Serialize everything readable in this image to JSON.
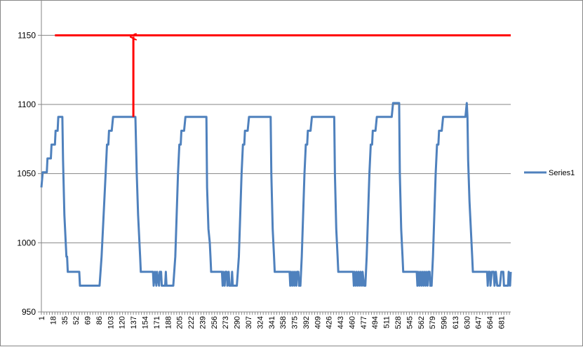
{
  "chart_data": {
    "type": "line",
    "ylim": [
      950,
      1175
    ],
    "xlim": [
      1,
      695
    ],
    "y_ticks": [
      950,
      1000,
      1050,
      1100,
      1150
    ],
    "x_ticks": [
      1,
      18,
      35,
      52,
      69,
      86,
      103,
      120,
      137,
      154,
      171,
      188,
      205,
      222,
      239,
      256,
      273,
      290,
      307,
      324,
      341,
      358,
      375,
      392,
      409,
      426,
      443,
      460,
      477,
      494,
      511,
      528,
      545,
      562,
      579,
      596,
      613,
      630,
      647,
      664,
      681
    ],
    "grid": "horizontal",
    "legend_position": "right",
    "series": [
      {
        "name": "Series1",
        "color": "#4F81BD",
        "points": [
          [
            1,
            1040
          ],
          [
            3,
            1051
          ],
          [
            9,
            1051
          ],
          [
            10,
            1061
          ],
          [
            15,
            1061
          ],
          [
            16,
            1071
          ],
          [
            21,
            1071
          ],
          [
            22,
            1081
          ],
          [
            25,
            1081
          ],
          [
            26,
            1091
          ],
          [
            32,
            1091
          ],
          [
            33,
            1060
          ],
          [
            35,
            1020
          ],
          [
            37,
            1000
          ],
          [
            38,
            990
          ],
          [
            39,
            990
          ],
          [
            40,
            979
          ],
          [
            57,
            979
          ],
          [
            58,
            969
          ],
          [
            87,
            969
          ],
          [
            90,
            990
          ],
          [
            93,
            1020
          ],
          [
            96,
            1050
          ],
          [
            98,
            1071
          ],
          [
            100,
            1071
          ],
          [
            101,
            1081
          ],
          [
            105,
            1081
          ],
          [
            107,
            1091
          ],
          [
            140,
            1091
          ],
          [
            142,
            1050
          ],
          [
            144,
            1020
          ],
          [
            146,
            1000
          ],
          [
            147,
            990
          ],
          [
            148,
            979
          ],
          [
            166,
            979
          ],
          [
            167,
            969
          ],
          [
            169,
            979
          ],
          [
            171,
            969
          ],
          [
            172,
            979
          ],
          [
            175,
            969
          ],
          [
            176,
            979
          ],
          [
            178,
            979
          ],
          [
            179,
            969
          ],
          [
            184,
            969
          ],
          [
            185,
            979
          ],
          [
            186,
            969
          ],
          [
            196,
            969
          ],
          [
            199,
            990
          ],
          [
            201,
            1020
          ],
          [
            203,
            1050
          ],
          [
            205,
            1071
          ],
          [
            207,
            1071
          ],
          [
            208,
            1081
          ],
          [
            212,
            1081
          ],
          [
            214,
            1091
          ],
          [
            245,
            1091
          ],
          [
            246,
            1040
          ],
          [
            248,
            1010
          ],
          [
            250,
            1000
          ],
          [
            251,
            990
          ],
          [
            252,
            979
          ],
          [
            268,
            979
          ],
          [
            269,
            969
          ],
          [
            270,
            979
          ],
          [
            272,
            969
          ],
          [
            273,
            979
          ],
          [
            275,
            979
          ],
          [
            276,
            969
          ],
          [
            278,
            979
          ],
          [
            279,
            969
          ],
          [
            282,
            969
          ],
          [
            283,
            979
          ],
          [
            284,
            969
          ],
          [
            290,
            969
          ],
          [
            293,
            990
          ],
          [
            295,
            1020
          ],
          [
            297,
            1050
          ],
          [
            299,
            1071
          ],
          [
            301,
            1071
          ],
          [
            302,
            1081
          ],
          [
            306,
            1081
          ],
          [
            308,
            1091
          ],
          [
            340,
            1091
          ],
          [
            341,
            1050
          ],
          [
            343,
            1010
          ],
          [
            345,
            990
          ],
          [
            346,
            979
          ],
          [
            368,
            979
          ],
          [
            369,
            969
          ],
          [
            370,
            979
          ],
          [
            372,
            969
          ],
          [
            373,
            979
          ],
          [
            375,
            969
          ],
          [
            376,
            979
          ],
          [
            378,
            969
          ],
          [
            379,
            979
          ],
          [
            381,
            979
          ],
          [
            382,
            969
          ],
          [
            384,
            969
          ],
          [
            386,
            990
          ],
          [
            388,
            1020
          ],
          [
            390,
            1050
          ],
          [
            392,
            1071
          ],
          [
            394,
            1071
          ],
          [
            395,
            1081
          ],
          [
            399,
            1081
          ],
          [
            401,
            1091
          ],
          [
            434,
            1091
          ],
          [
            435,
            1050
          ],
          [
            437,
            1010
          ],
          [
            439,
            990
          ],
          [
            440,
            979
          ],
          [
            462,
            979
          ],
          [
            463,
            969
          ],
          [
            464,
            979
          ],
          [
            466,
            969
          ],
          [
            467,
            979
          ],
          [
            469,
            969
          ],
          [
            470,
            979
          ],
          [
            472,
            969
          ],
          [
            473,
            979
          ],
          [
            475,
            969
          ],
          [
            476,
            979
          ],
          [
            478,
            969
          ],
          [
            480,
            969
          ],
          [
            482,
            990
          ],
          [
            484,
            1020
          ],
          [
            486,
            1050
          ],
          [
            488,
            1071
          ],
          [
            490,
            1071
          ],
          [
            491,
            1081
          ],
          [
            495,
            1081
          ],
          [
            497,
            1091
          ],
          [
            519,
            1091
          ],
          [
            521,
            1101
          ],
          [
            530,
            1101
          ],
          [
            531,
            1050
          ],
          [
            533,
            1010
          ],
          [
            535,
            990
          ],
          [
            536,
            979
          ],
          [
            556,
            979
          ],
          [
            557,
            969
          ],
          [
            558,
            979
          ],
          [
            560,
            969
          ],
          [
            561,
            979
          ],
          [
            563,
            969
          ],
          [
            564,
            979
          ],
          [
            566,
            969
          ],
          [
            567,
            979
          ],
          [
            569,
            969
          ],
          [
            570,
            979
          ],
          [
            572,
            969
          ],
          [
            573,
            979
          ],
          [
            575,
            979
          ],
          [
            576,
            969
          ],
          [
            578,
            969
          ],
          [
            580,
            990
          ],
          [
            582,
            1020
          ],
          [
            584,
            1050
          ],
          [
            586,
            1071
          ],
          [
            588,
            1071
          ],
          [
            589,
            1081
          ],
          [
            593,
            1081
          ],
          [
            595,
            1091
          ],
          [
            627,
            1091
          ],
          [
            628,
            1091
          ],
          [
            630,
            1101
          ],
          [
            631,
            1091
          ],
          [
            632,
            1060
          ],
          [
            634,
            1030
          ],
          [
            636,
            1010
          ],
          [
            638,
            990
          ],
          [
            639,
            979
          ],
          [
            660,
            979
          ],
          [
            661,
            969
          ],
          [
            662,
            979
          ],
          [
            664,
            979
          ],
          [
            665,
            969
          ],
          [
            667,
            979
          ],
          [
            670,
            979
          ],
          [
            671,
            969
          ],
          [
            673,
            979
          ],
          [
            675,
            969
          ],
          [
            679,
            969
          ],
          [
            681,
            979
          ],
          [
            684,
            979
          ],
          [
            685,
            969
          ],
          [
            691,
            969
          ],
          [
            692,
            979
          ],
          [
            694,
            969
          ],
          [
            695,
            979
          ]
        ]
      }
    ],
    "annotations": [
      {
        "type": "hline",
        "y": 1150,
        "x_from": 21,
        "x_to": 695,
        "color": "#FF0000"
      },
      {
        "type": "arrow",
        "x": 137,
        "y_from": 1091,
        "y_to": 1150,
        "color": "#FF0000"
      }
    ]
  }
}
